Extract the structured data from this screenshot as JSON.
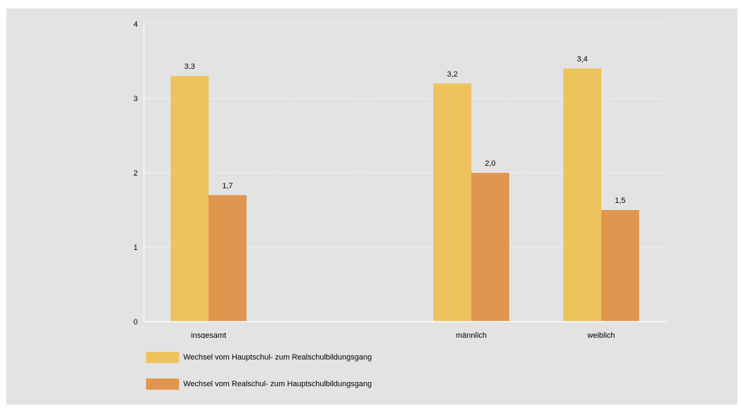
{
  "chart_data": {
    "type": "bar",
    "categories": [
      "insgesamt",
      "",
      "männlich",
      "weiblich"
    ],
    "series": [
      {
        "name": "Wechsel vom Hauptschul- zum Realschulbildungsgang",
        "values": [
          3.3,
          null,
          3.2,
          3.4
        ],
        "labels": [
          "3,3",
          "",
          "3,2",
          "3,4"
        ],
        "color": "#edc35e"
      },
      {
        "name": "Wechsel vom Realschul- zum Hauptschulbildungsgang",
        "values": [
          1.7,
          null,
          2.0,
          1.5
        ],
        "labels": [
          "1,7",
          "",
          "2,0",
          "1,5"
        ],
        "color": "#e19650"
      }
    ],
    "yticks": [
      "0",
      "1",
      "2",
      "3",
      "4"
    ],
    "ylim": [
      0,
      4
    ],
    "grid": true,
    "legend_position": "bottom-left",
    "title": "",
    "xlabel": "",
    "ylabel": ""
  },
  "colors": {
    "background": "#e3e3e3",
    "grid": "#ffffff",
    "axis": "#ffffff"
  }
}
